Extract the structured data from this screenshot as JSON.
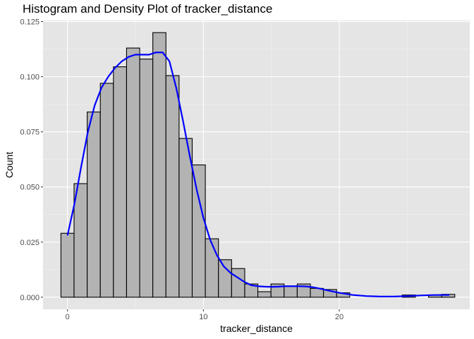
{
  "chart_data": {
    "type": "bar",
    "title": "Histogram and Density Plot of tracker_distance",
    "xlabel": "tracker_distance",
    "ylabel": "Count",
    "xlim": [
      -1.8,
      29.6
    ],
    "ylim": [
      -0.0055,
      0.1255
    ],
    "x_ticks": [
      0,
      10,
      20
    ],
    "x_tick_labels": [
      "0",
      "10",
      "20"
    ],
    "y_ticks": [
      0,
      0.025,
      0.05,
      0.075,
      0.1,
      0.125
    ],
    "y_tick_labels": [
      "0.000",
      "0.025",
      "0.050",
      "0.075",
      "0.100",
      "0.125"
    ],
    "bin_width": 0.966,
    "bin_centers": [
      0,
      0.966,
      1.932,
      2.898,
      3.864,
      4.83,
      5.796,
      6.762,
      7.728,
      8.694,
      9.66,
      10.626,
      11.592,
      12.558,
      13.524,
      14.49,
      15.456,
      16.422,
      17.388,
      18.354,
      19.32,
      20.286,
      21.252,
      22.218,
      23.184,
      24.15,
      25.116,
      26.082,
      27.048,
      28.014
    ],
    "bin_values": [
      0.029,
      0.0515,
      0.084,
      0.097,
      0.1045,
      0.113,
      0.108,
      0.12,
      0.1005,
      0.072,
      0.06,
      0.0265,
      0.017,
      0.013,
      0.006,
      0.0025,
      0.006,
      0.005,
      0.006,
      0.004,
      0.0035,
      0.002,
      0,
      0,
      0,
      0,
      0.001,
      0,
      0.001,
      0.0013
    ],
    "bar_fill": "#b3b3b3",
    "bar_stroke": "#000000",
    "density": {
      "color": "#0000ff",
      "x": [
        0,
        0.5,
        1,
        1.5,
        2,
        2.5,
        3,
        3.5,
        4,
        4.5,
        5,
        5.5,
        6,
        6.5,
        7,
        7.5,
        8,
        8.5,
        9,
        9.5,
        10,
        10.5,
        11,
        11.5,
        12,
        12.5,
        13,
        13.5,
        14,
        14.5,
        15,
        15.5,
        16,
        16.5,
        17,
        17.5,
        18,
        18.5,
        19,
        19.5,
        20,
        21,
        22,
        23,
        24,
        25,
        26,
        27,
        28.1
      ],
      "y": [
        0.028,
        0.042,
        0.059,
        0.075,
        0.087,
        0.095,
        0.1,
        0.104,
        0.107,
        0.109,
        0.11,
        0.11,
        0.11,
        0.111,
        0.111,
        0.107,
        0.095,
        0.08,
        0.064,
        0.049,
        0.036,
        0.026,
        0.019,
        0.014,
        0.011,
        0.009,
        0.007,
        0.0055,
        0.005,
        0.0048,
        0.0047,
        0.0048,
        0.005,
        0.005,
        0.005,
        0.0049,
        0.0046,
        0.004,
        0.0033,
        0.0026,
        0.002,
        0.001,
        0.0005,
        0.0003,
        0.0003,
        0.0005,
        0.0008,
        0.001,
        0.001
      ]
    },
    "panel_background": "#e5e5e5",
    "grid": true,
    "legend": "none"
  }
}
